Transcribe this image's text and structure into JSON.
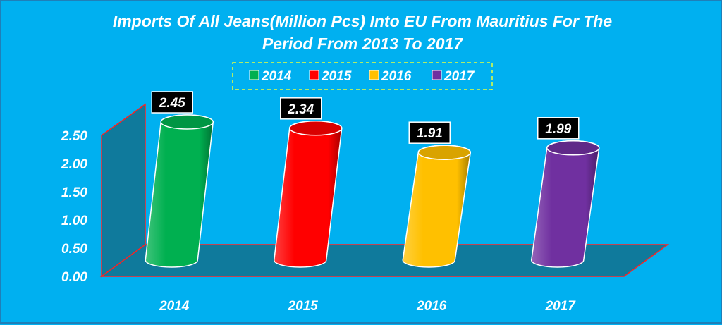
{
  "chart_data": {
    "type": "bar",
    "title_line1": "Imports Of All Jeans(Million Pcs) Into EU From Mauritius For The",
    "title_line2": "Period From 2013 To 2017",
    "categories": [
      "2014",
      "2015",
      "2016",
      "2017"
    ],
    "values": [
      2.45,
      2.34,
      1.91,
      1.99
    ],
    "value_labels": [
      "2.45",
      "2.34",
      "1.91",
      "1.99"
    ],
    "legend": [
      "2014",
      "2015",
      "2016",
      "2017"
    ],
    "colors": [
      "#00b050",
      "#ff0000",
      "#ffc000",
      "#7030a0"
    ],
    "ylim": [
      0,
      2.5
    ],
    "yticks": [
      "0.00",
      "0.50",
      "1.00",
      "1.50",
      "2.00",
      "2.50"
    ],
    "legend_position": "top-center",
    "grid": false,
    "shape": "3d-cylinder"
  }
}
